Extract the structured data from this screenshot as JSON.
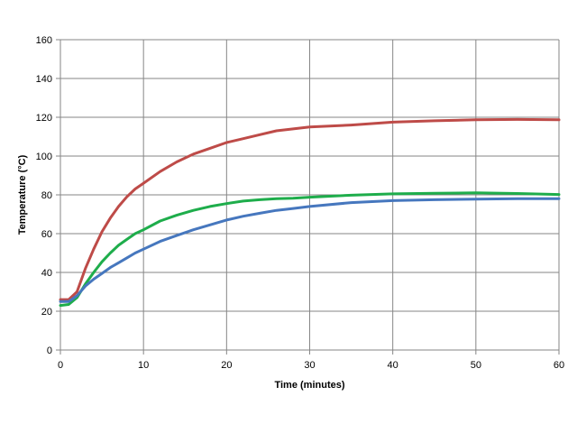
{
  "chart_data": {
    "type": "line",
    "title": "",
    "xlabel": "Time (minutes)",
    "ylabel": "Temperature (°C)",
    "xlim": [
      0,
      60
    ],
    "ylim": [
      0,
      160
    ],
    "xticks": [
      0,
      10,
      20,
      30,
      40,
      50,
      60
    ],
    "yticks": [
      0,
      20,
      40,
      60,
      80,
      100,
      120,
      140,
      160
    ],
    "grid": true,
    "legend": "none",
    "series": [
      {
        "color": "#BE4B48",
        "points": [
          [
            0,
            26
          ],
          [
            1,
            26
          ],
          [
            2,
            30
          ],
          [
            3,
            42
          ],
          [
            4,
            52
          ],
          [
            5,
            61
          ],
          [
            6,
            68
          ],
          [
            7,
            74
          ],
          [
            8,
            79
          ],
          [
            9,
            83
          ],
          [
            10,
            86
          ],
          [
            12,
            92
          ],
          [
            14,
            97
          ],
          [
            16,
            101
          ],
          [
            18,
            104
          ],
          [
            20,
            107
          ],
          [
            22,
            109
          ],
          [
            24,
            111
          ],
          [
            26,
            113
          ],
          [
            28,
            114
          ],
          [
            30,
            115
          ],
          [
            35,
            116
          ],
          [
            40,
            117.5
          ],
          [
            45,
            118.2
          ],
          [
            50,
            118.7
          ],
          [
            55,
            118.9
          ],
          [
            60,
            118.7
          ]
        ]
      },
      {
        "color": "#1EAD4B",
        "points": [
          [
            0,
            23
          ],
          [
            1,
            23.5
          ],
          [
            2,
            27
          ],
          [
            3,
            34
          ],
          [
            4,
            40
          ],
          [
            5,
            45.5
          ],
          [
            6,
            50
          ],
          [
            7,
            54
          ],
          [
            8,
            57
          ],
          [
            9,
            60
          ],
          [
            10,
            62
          ],
          [
            12,
            66.5
          ],
          [
            14,
            69.5
          ],
          [
            16,
            72
          ],
          [
            18,
            74
          ],
          [
            20,
            75.5
          ],
          [
            22,
            76.8
          ],
          [
            24,
            77.5
          ],
          [
            26,
            78
          ],
          [
            28,
            78.3
          ],
          [
            30,
            78.8
          ],
          [
            35,
            79.8
          ],
          [
            40,
            80.5
          ],
          [
            45,
            80.8
          ],
          [
            50,
            81
          ],
          [
            55,
            80.7
          ],
          [
            60,
            80.2
          ]
        ]
      },
      {
        "color": "#4677BE",
        "points": [
          [
            0,
            25
          ],
          [
            1,
            25
          ],
          [
            2,
            28
          ],
          [
            3,
            33
          ],
          [
            4,
            36.5
          ],
          [
            5,
            39.5
          ],
          [
            6,
            42.5
          ],
          [
            7,
            45
          ],
          [
            8,
            47.5
          ],
          [
            9,
            50
          ],
          [
            10,
            52
          ],
          [
            12,
            56
          ],
          [
            14,
            59
          ],
          [
            16,
            62
          ],
          [
            18,
            64.5
          ],
          [
            20,
            67
          ],
          [
            22,
            69
          ],
          [
            24,
            70.5
          ],
          [
            26,
            72
          ],
          [
            28,
            73
          ],
          [
            30,
            74
          ],
          [
            35,
            76
          ],
          [
            40,
            77
          ],
          [
            45,
            77.5
          ],
          [
            50,
            77.8
          ],
          [
            55,
            78
          ],
          [
            60,
            78
          ]
        ]
      }
    ]
  }
}
